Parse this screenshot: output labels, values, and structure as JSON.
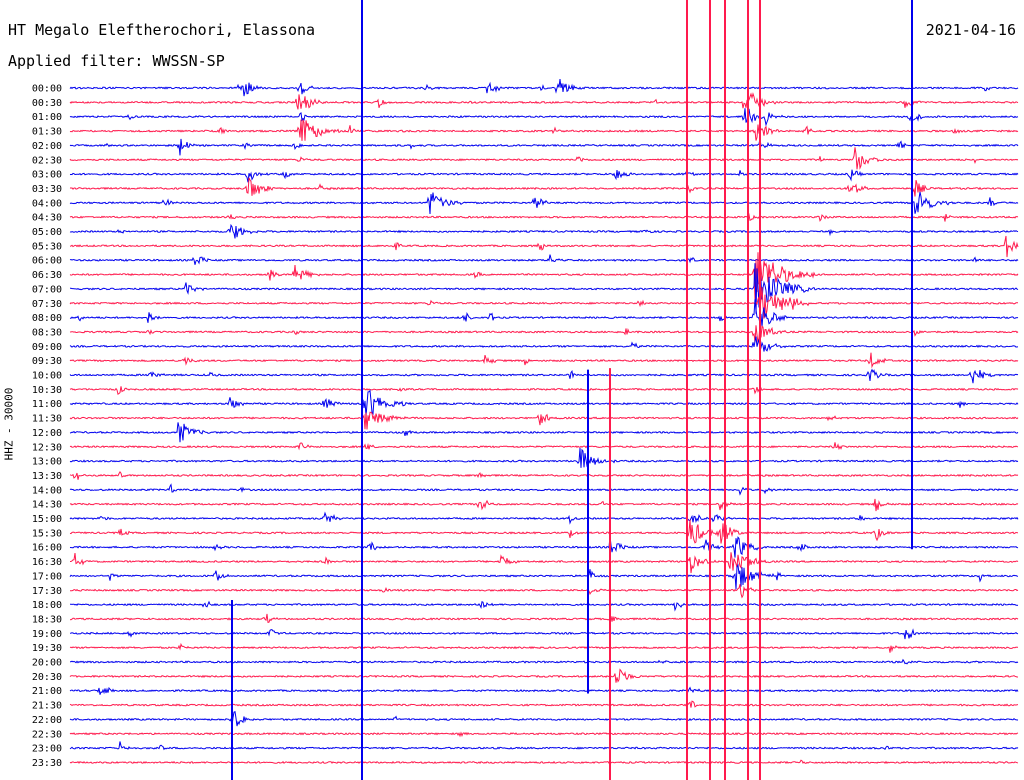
{
  "header": {
    "station": "HT Megalo Eleftherochori, Elassona",
    "filter": "Applied filter: WWSSN-SP",
    "date": "2021-04-16"
  },
  "chart_data": {
    "type": "line",
    "ylabel": "HHZ - 30000",
    "row_labels": [
      "00:00",
      "00:30",
      "01:00",
      "01:30",
      "02:00",
      "02:30",
      "03:00",
      "03:30",
      "04:00",
      "04:30",
      "05:00",
      "05:30",
      "06:00",
      "06:30",
      "07:00",
      "07:30",
      "08:00",
      "08:30",
      "09:00",
      "09:30",
      "10:00",
      "10:30",
      "11:00",
      "11:30",
      "12:00",
      "12:30",
      "13:00",
      "13:30",
      "14:00",
      "14:30",
      "15:00",
      "15:30",
      "16:00",
      "16:30",
      "17:00",
      "17:30",
      "18:00",
      "18:30",
      "19:00",
      "19:30",
      "20:00",
      "20:30",
      "21:00",
      "21:30",
      "22:00",
      "22:30",
      "23:00",
      "23:30"
    ],
    "series_colors": [
      "#0000ee",
      "#ff1a4d"
    ]
  }
}
